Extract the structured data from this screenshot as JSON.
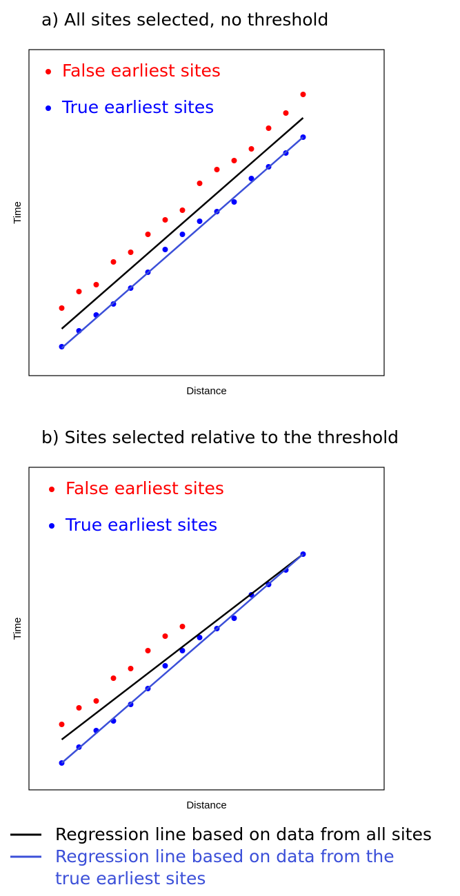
{
  "chart_data": [
    {
      "type": "scatter",
      "title": "a) All sites selected, no threshold",
      "x_label": "Distance",
      "y_label": "Time",
      "xlim": [
        -0.9,
        19.7
      ],
      "ylim": [
        0,
        473
      ],
      "series": [
        {
          "name": "False earliest sites",
          "color": "#ff0000",
          "mode": "markers",
          "x": [
            1,
            2,
            3,
            4,
            5,
            6,
            7,
            8,
            9,
            10,
            11,
            12,
            13,
            14,
            15
          ],
          "values": [
            98,
            122,
            132,
            165,
            179,
            205,
            226,
            240,
            279,
            299,
            312,
            329,
            359,
            381,
            408
          ]
        },
        {
          "name": "True earliest sites",
          "color": "#0000ff",
          "mode": "markers",
          "x": [
            1,
            2,
            3,
            4,
            5,
            6,
            7,
            8,
            9,
            10,
            11,
            12,
            13,
            14,
            15
          ],
          "values": [
            42,
            65,
            88,
            104,
            127,
            150,
            183,
            205,
            224,
            238,
            252,
            286,
            303,
            323,
            346
          ]
        },
        {
          "name": "Regression line based on data from all sites",
          "color": "#000000",
          "mode": "line",
          "x": [
            1,
            15
          ],
          "values": [
            68,
            374
          ]
        },
        {
          "name": "Regression line based on data from the true earliest sites",
          "color": "#3b4fd8",
          "mode": "line",
          "x": [
            1,
            15
          ],
          "values": [
            40,
            346
          ]
        }
      ]
    },
    {
      "type": "scatter",
      "title": "b) Sites selected relative to the threshold",
      "x_label": "Distance",
      "y_label": "Time",
      "xlim": [
        -0.9,
        19.7
      ],
      "ylim": [
        0,
        468
      ],
      "series": [
        {
          "name": "False earliest sites",
          "color": "#ff0000",
          "mode": "markers",
          "x": [
            1,
            2,
            3,
            4,
            5,
            6,
            7,
            8
          ],
          "values": [
            95,
            119,
            129,
            162,
            176,
            202,
            223,
            237
          ]
        },
        {
          "name": "True earliest sites",
          "color": "#0000ff",
          "mode": "markers",
          "x": [
            1,
            2,
            3,
            4,
            5,
            6,
            7,
            8,
            9,
            10,
            11,
            12,
            13,
            14,
            15
          ],
          "values": [
            39,
            62,
            86,
            100,
            124,
            147,
            180,
            202,
            221,
            234,
            249,
            283,
            298,
            319,
            342
          ]
        },
        {
          "color": "#000000",
          "mode": "line",
          "x": [
            1,
            15
          ],
          "values": [
            73,
            342
          ]
        },
        {
          "color": "#3b4fd8",
          "mode": "line",
          "x": [
            1,
            15
          ],
          "values": [
            39,
            342
          ]
        }
      ]
    }
  ]
}
